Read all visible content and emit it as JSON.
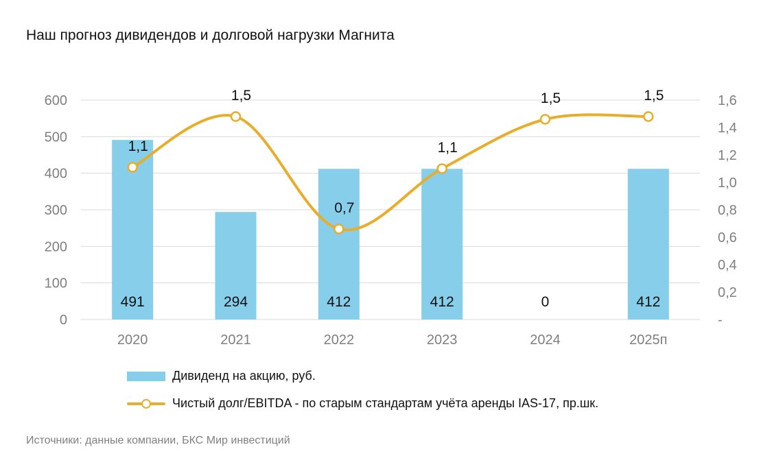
{
  "title": "Наш прогноз дивидендов и долговой нагрузки Магнита",
  "source": "Источники: данные компании, БКС Мир инвестиций",
  "colors": {
    "bar": "#87CEEB",
    "line": "#E8AD2A",
    "axis_text": "#7f7f7f",
    "grid": "#d9d9d9"
  },
  "chart_data": {
    "type": "bar",
    "categories": [
      "2020",
      "2021",
      "2022",
      "2023",
      "2024",
      "2025п"
    ],
    "series": [
      {
        "name": "Дивиденд на акцию, руб.",
        "type": "bar",
        "axis": "left",
        "values": [
          491,
          294,
          412,
          412,
          0,
          412
        ],
        "labels": [
          "491",
          "294",
          "412",
          "412",
          "0",
          "412"
        ]
      },
      {
        "name": "Чистый долг/EBITDA - по старым стандартам учёта аренды IAS-17, пр.шк.",
        "type": "line",
        "axis": "right",
        "smooth": true,
        "values": [
          1.11,
          1.48,
          0.66,
          1.1,
          1.46,
          1.48
        ],
        "labels": [
          "1,1",
          "1,5",
          "0,7",
          "1,1",
          "1,5",
          "1,5"
        ]
      }
    ],
    "y_left": {
      "range": [
        0,
        600
      ],
      "ticks": [
        0,
        100,
        200,
        300,
        400,
        500,
        600
      ],
      "tick_labels": [
        "0",
        "100",
        "200",
        "300",
        "400",
        "500",
        "600"
      ]
    },
    "y_right": {
      "range": [
        0,
        1.6
      ],
      "ticks": [
        0,
        0.2,
        0.4,
        0.6,
        0.8,
        1.0,
        1.2,
        1.4,
        1.6
      ],
      "tick_labels": [
        "-",
        "0,2",
        "0,4",
        "0,6",
        "0,8",
        "1,0",
        "1,2",
        "1,4",
        "1,6"
      ]
    },
    "grid": true,
    "legend_position": "bottom"
  }
}
